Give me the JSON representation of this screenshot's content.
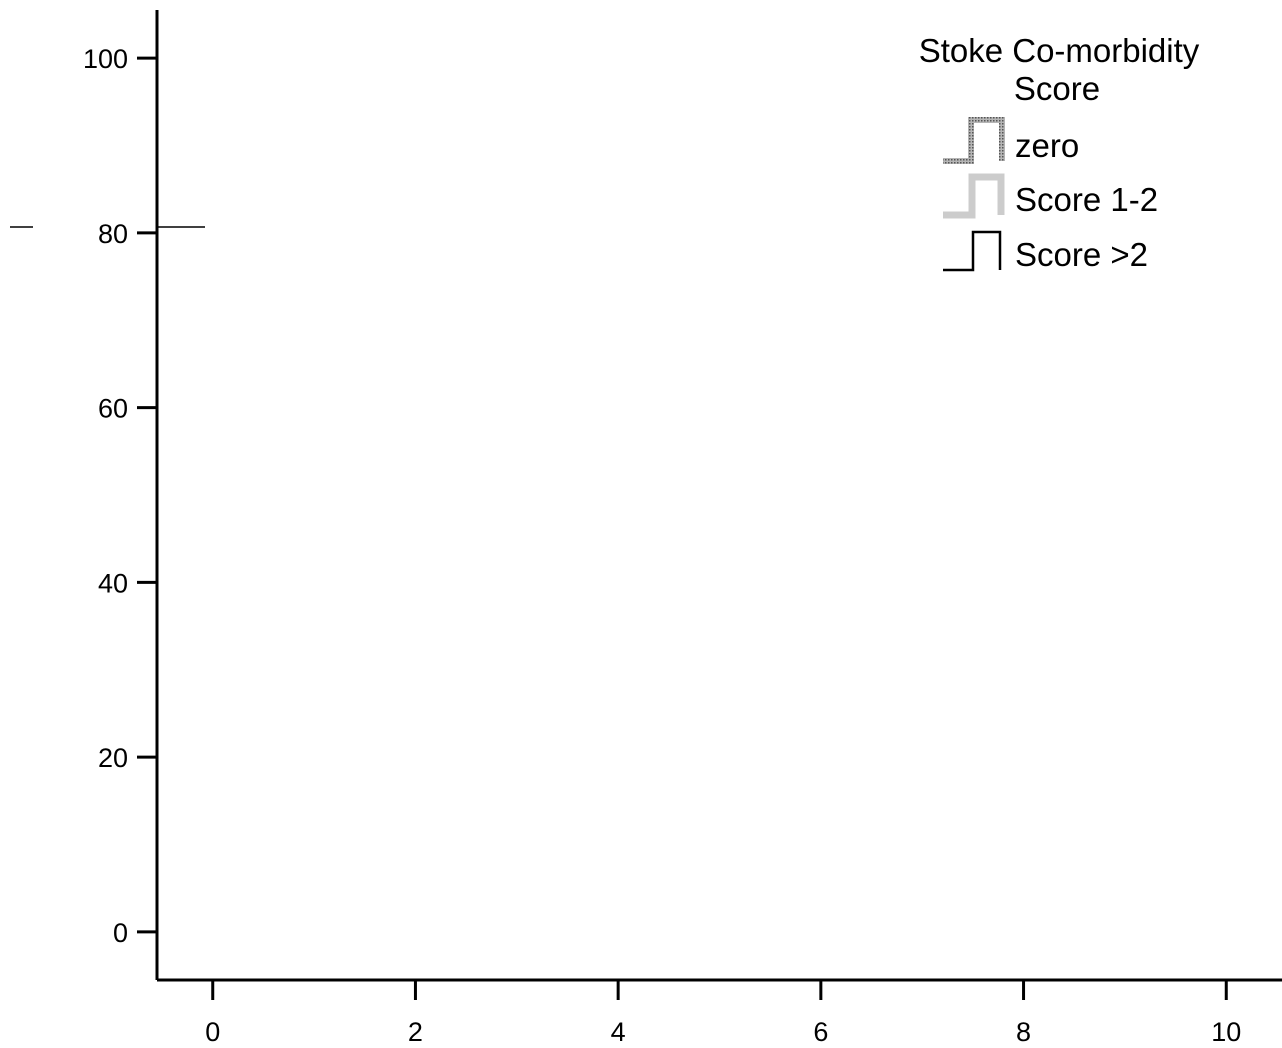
{
  "chart_data": {
    "type": "line",
    "title": "",
    "xlabel": "",
    "ylabel": "",
    "xlim": [
      -0.55,
      10.55
    ],
    "ylim": [
      -5.5,
      105.5
    ],
    "x_ticks": [
      "0",
      "2",
      "4",
      "6",
      "8",
      "10"
    ],
    "y_ticks": [
      "0",
      "20",
      "40",
      "60",
      "80",
      "100"
    ],
    "grid": false,
    "legend": {
      "placement": "top-right",
      "title_lines": [
        "Stoke Co-morbidity",
        "Score"
      ],
      "entries": [
        "zero",
        "Score 1-2",
        "Score >2"
      ]
    },
    "series": [
      {
        "name": "zero",
        "style": "dotted",
        "color": "#8a8a8a",
        "x": [],
        "y": []
      },
      {
        "name": "Score 1-2",
        "style": "solid",
        "color": "#cccccc",
        "x": [],
        "y": []
      },
      {
        "name": "Score >2",
        "style": "solid",
        "color": "#000000",
        "x": [],
        "y": []
      }
    ]
  }
}
